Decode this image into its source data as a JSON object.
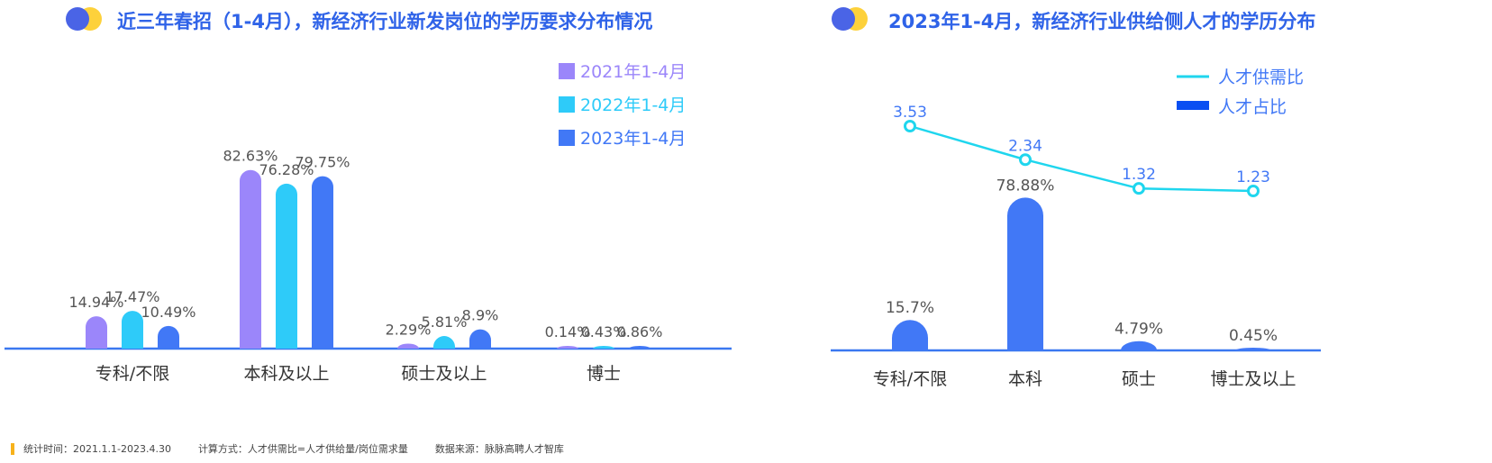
{
  "footer": {
    "stat_time": "统计时间：2021.1.1-2023.4.30",
    "calc_method": "计算方式：人才供需比=人才供给量/岗位需求量",
    "source": "数据来源：脉脉高聘人才智库"
  },
  "colors": {
    "y2021": "#9b86fa",
    "y2022": "#2ecbf9",
    "y2023": "#4178f6",
    "supply_line": "#1fd6ee",
    "share_legend": "#0a4ff2",
    "axis": "#3a78f0",
    "title": "#2f63e8",
    "dot_blue": "#4a64e6",
    "dot_yellow": "#fdd13b"
  },
  "chart_data": [
    {
      "type": "bar",
      "title": "近三年春招（1-4月），新经济行业新发岗位的学历要求分布情况",
      "categories": [
        "专科/不限",
        "本科及以上",
        "硕士及以上",
        "博士"
      ],
      "series": [
        {
          "name": "2021年1-4月",
          "values": [
            14.94,
            82.63,
            2.29,
            0.14
          ],
          "labels": [
            "14.94%",
            "82.63%",
            "2.29%",
            "0.14%"
          ]
        },
        {
          "name": "2022年1-4月",
          "values": [
            17.47,
            76.28,
            5.81,
            0.43
          ],
          "labels": [
            "17.47%",
            "76.28%",
            "5.81%",
            "0.43%"
          ]
        },
        {
          "name": "2023年1-4月",
          "values": [
            10.49,
            79.75,
            8.9,
            0.86
          ],
          "labels": [
            "10.49%",
            "79.75%",
            "8.9%",
            "0.86%"
          ]
        }
      ],
      "ylim": [
        0,
        100
      ],
      "legend_position": "top-right",
      "grid": false
    },
    {
      "type": "bar",
      "title": "2023年1-4月，新经济行业供给侧人才的学历分布",
      "categories": [
        "专科/不限",
        "本科",
        "硕士",
        "博士及以上"
      ],
      "series": [
        {
          "name": "人才占比",
          "kind": "bar",
          "values": [
            15.7,
            78.88,
            4.79,
            0.45
          ],
          "labels": [
            "15.7%",
            "78.88%",
            "4.79%",
            "0.45%"
          ]
        },
        {
          "name": "人才供需比",
          "kind": "line",
          "values": [
            3.53,
            2.34,
            1.32,
            1.23
          ],
          "labels": [
            "3.53",
            "2.34",
            "1.32",
            "1.23"
          ]
        }
      ],
      "ylim": [
        0,
        100
      ],
      "legend_position": "top-right",
      "grid": false
    }
  ]
}
